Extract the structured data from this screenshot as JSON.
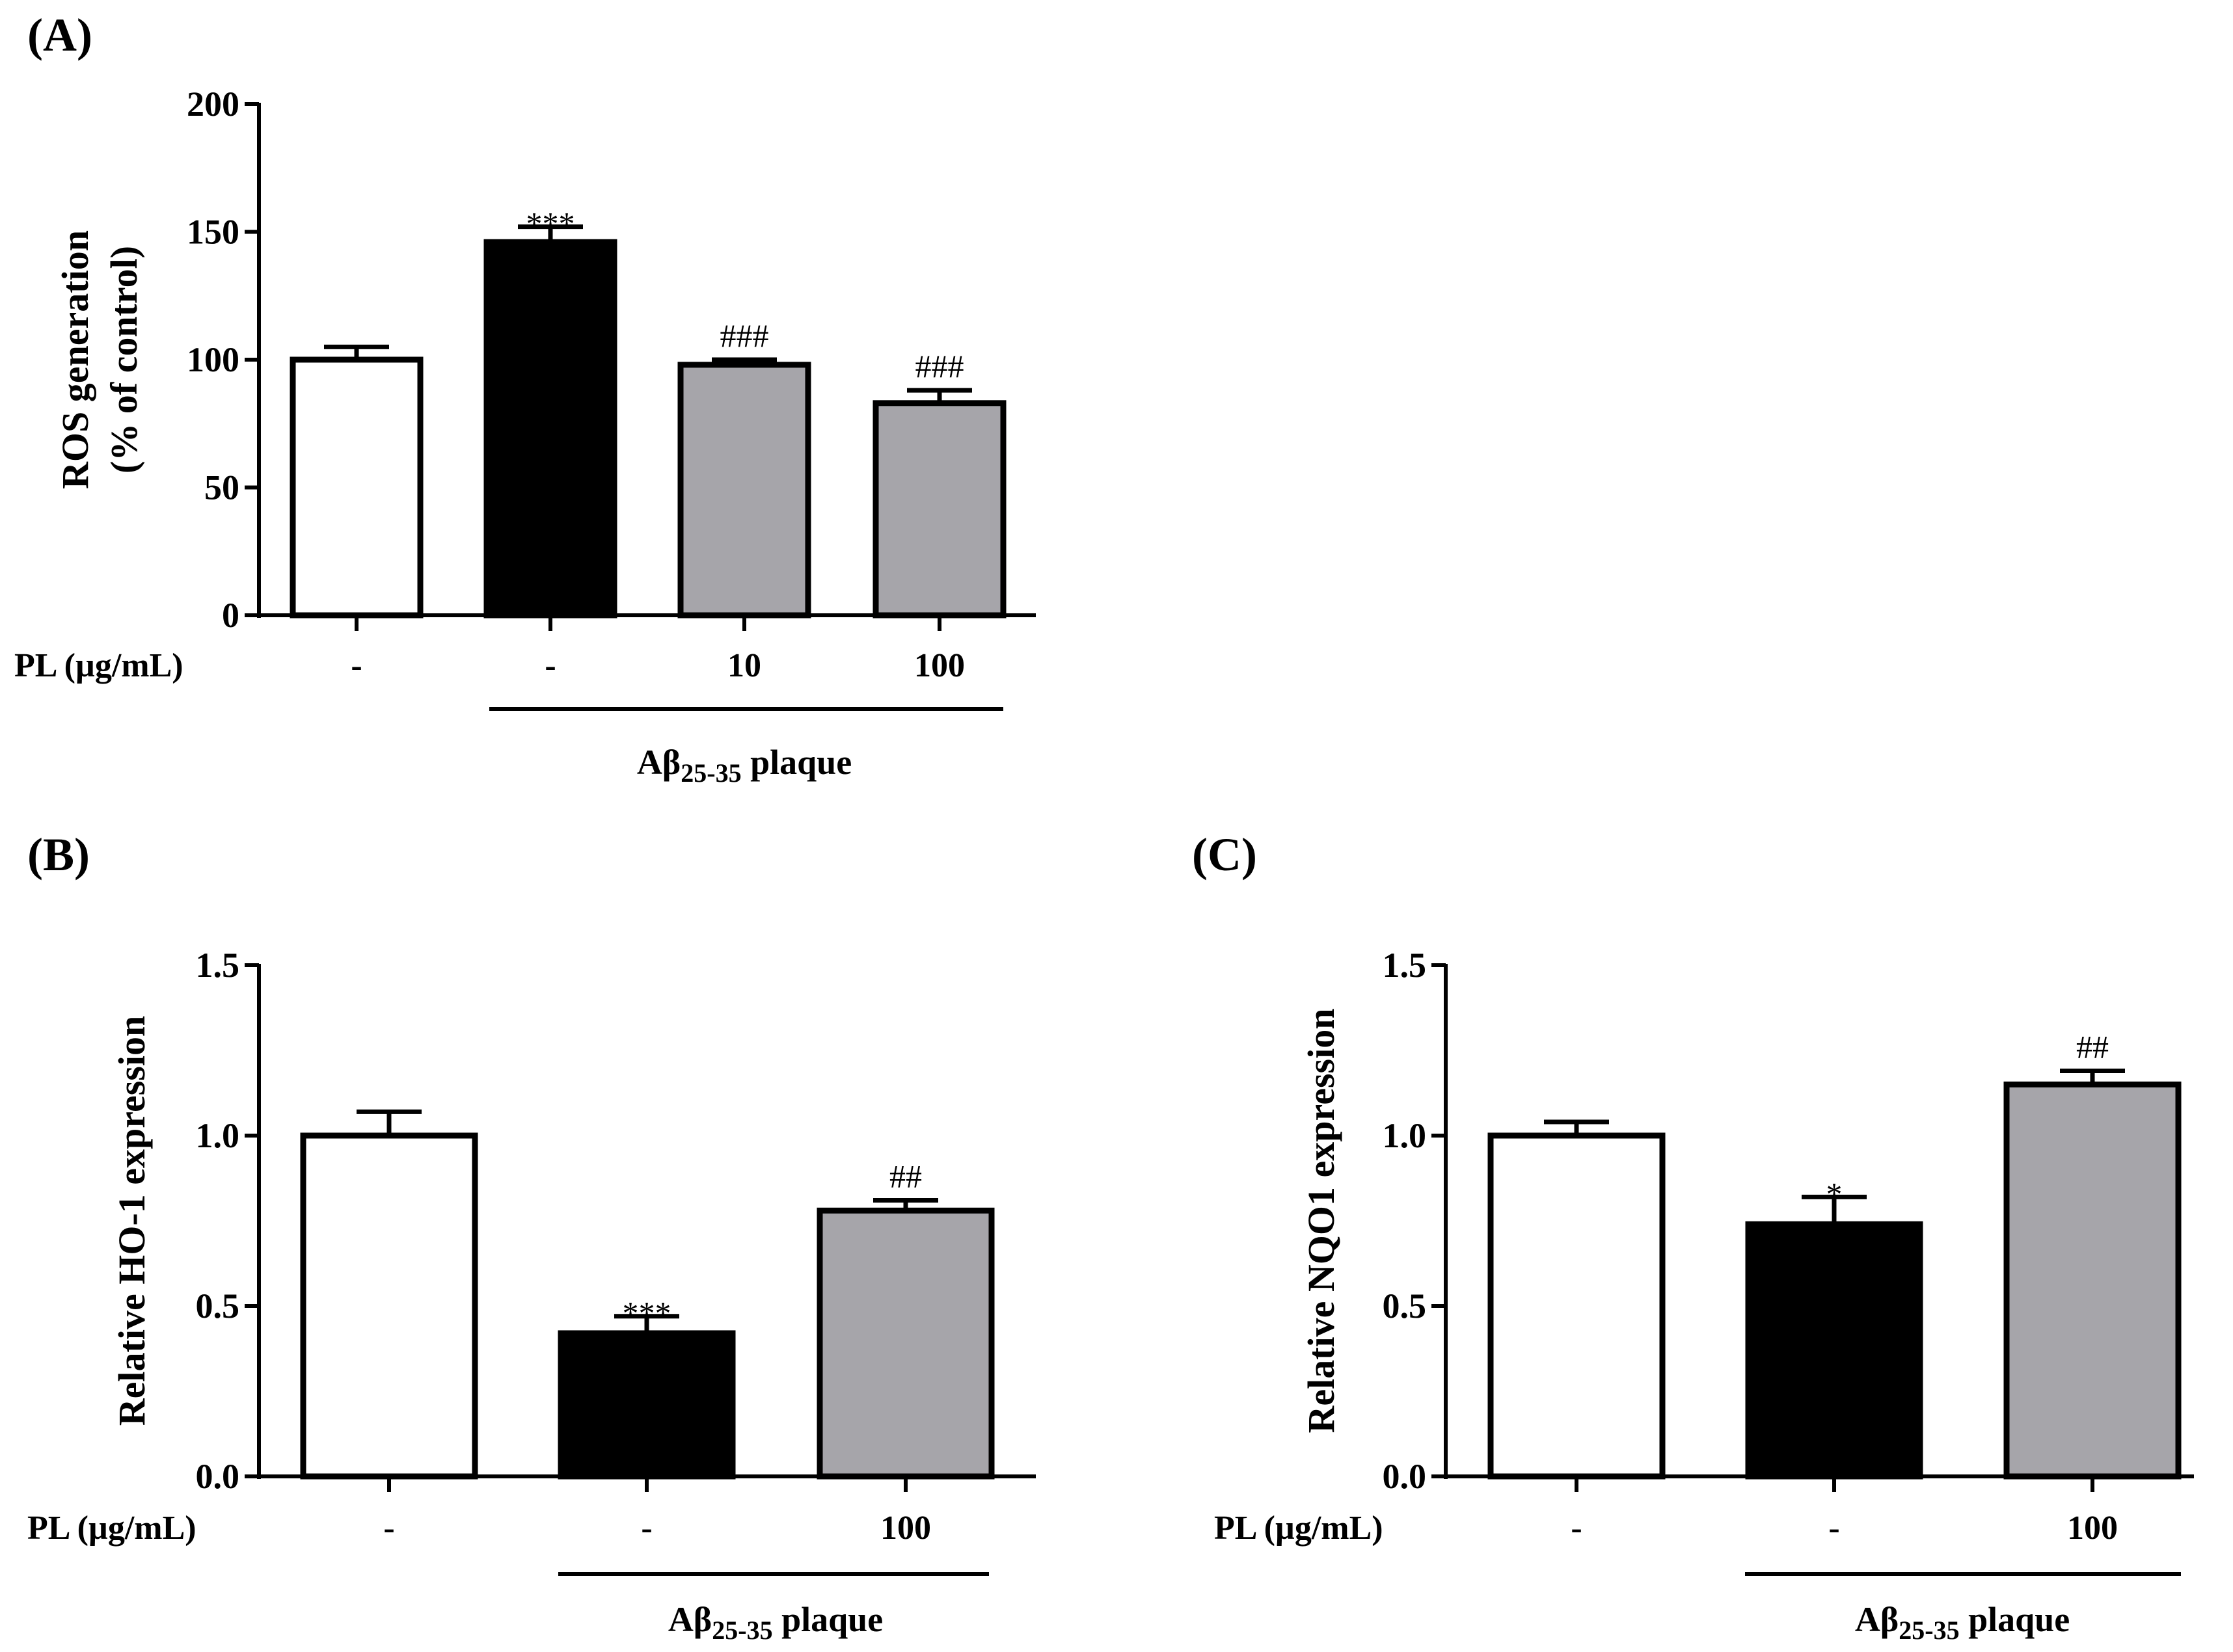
{
  "chart_data": [
    {
      "type": "bar",
      "panel_label": "(A)",
      "ylabel_line1": "ROS generation",
      "ylabel_line2": "(% of control)",
      "ylim": [
        0,
        200
      ],
      "yticks": [
        "0",
        "50",
        "100",
        "150",
        "200"
      ],
      "row_label": "PL (µg/mL)",
      "categories": [
        "-",
        "-",
        "10",
        "100"
      ],
      "values": [
        100,
        146,
        98,
        83
      ],
      "errors": [
        5,
        6,
        2,
        5
      ],
      "colors": [
        "#ffffff",
        "#000000",
        "#a6a5aa",
        "#a6a5aa"
      ],
      "annotations": [
        "",
        "***",
        "###",
        "###"
      ],
      "group_label": "Aβ",
      "group_label_sub": "25-35",
      "group_label_tail": " plaque"
    },
    {
      "type": "bar",
      "panel_label": "(B)",
      "ylabel_line1": "Relative HO-1 expression",
      "ylim": [
        0,
        1.5
      ],
      "yticks": [
        "0.0",
        "0.5",
        "1.0",
        "1.5"
      ],
      "row_label": "PL (µg/mL)",
      "categories": [
        "-",
        "-",
        "100"
      ],
      "values": [
        1.0,
        0.42,
        0.78
      ],
      "errors": [
        0.07,
        0.05,
        0.03
      ],
      "colors": [
        "#ffffff",
        "#000000",
        "#a6a5aa"
      ],
      "annotations": [
        "",
        "***",
        "##"
      ],
      "group_label": "Aβ",
      "group_label_sub": "25-35",
      "group_label_tail": " plaque"
    },
    {
      "type": "bar",
      "panel_label": "(C)",
      "ylabel_line1": "Relative NQO1 expression",
      "ylim": [
        0,
        1.5
      ],
      "yticks": [
        "0.0",
        "0.5",
        "1.0",
        "1.5"
      ],
      "row_label": "PL (µg/mL)",
      "categories": [
        "-",
        "-",
        "100"
      ],
      "values": [
        1.0,
        0.74,
        1.15
      ],
      "errors": [
        0.04,
        0.08,
        0.04
      ],
      "colors": [
        "#ffffff",
        "#000000",
        "#a6a5aa"
      ],
      "annotations": [
        "",
        "*",
        "##"
      ],
      "group_label": "Aβ",
      "group_label_sub": "25-35",
      "group_label_tail": " plaque"
    }
  ]
}
